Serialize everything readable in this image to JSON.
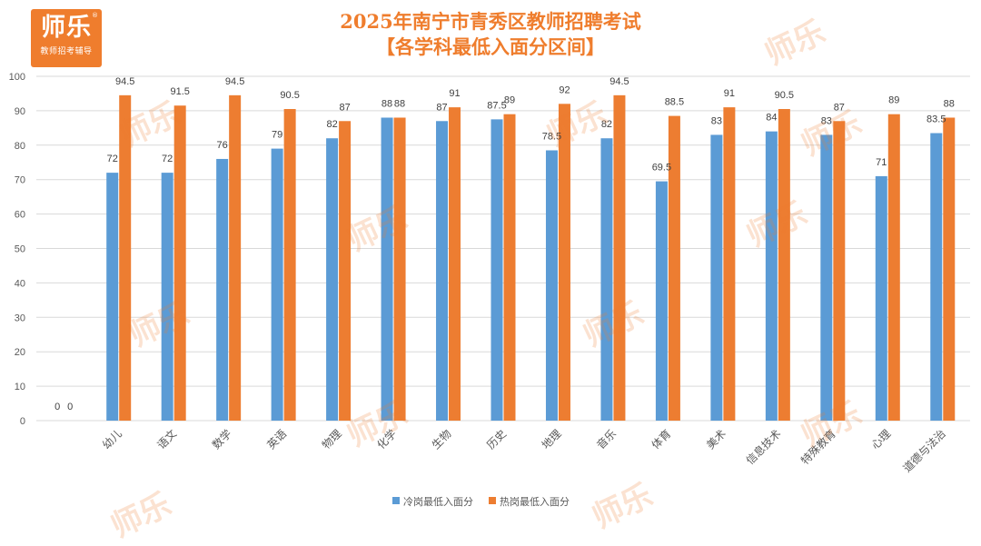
{
  "logo": {
    "main": "师乐",
    "sub": "教师招考辅导",
    "reg": "®"
  },
  "title": {
    "line1": "2025年南宁市青秀区教师招聘考试",
    "line2": "【各学科最低入面分区间】"
  },
  "watermark_text": "师乐",
  "colors": {
    "cold": "#5b9bd5",
    "hot": "#ed7d31",
    "axis_text": "#595959",
    "grid": "#d9d9d9",
    "title": "#ef7d2d"
  },
  "chart_data": {
    "type": "bar",
    "categories": [
      "",
      "幼儿",
      "语文",
      "数学",
      "英语",
      "物理",
      "化学",
      "生物",
      "历史",
      "地理",
      "音乐",
      "体育",
      "美术",
      "信息技术",
      "特殊教育",
      "心理",
      "道德与法治"
    ],
    "series": [
      {
        "name": "冷岗最低入面分",
        "values": [
          0,
          72,
          72,
          76,
          79,
          82,
          88,
          87,
          87.5,
          78.5,
          82,
          69.5,
          83,
          84,
          83,
          71,
          83.5
        ]
      },
      {
        "name": "热岗最低入面分",
        "values": [
          0,
          94.5,
          91.5,
          94.5,
          90.5,
          87,
          88,
          91,
          89,
          92,
          94.5,
          88.5,
          91,
          90.5,
          87,
          89,
          88
        ]
      }
    ],
    "ylim": [
      0,
      100
    ],
    "yticks": [
      0,
      10,
      20,
      30,
      40,
      50,
      60,
      70,
      80,
      90,
      100
    ],
    "grid": true,
    "legend": "bottom"
  }
}
